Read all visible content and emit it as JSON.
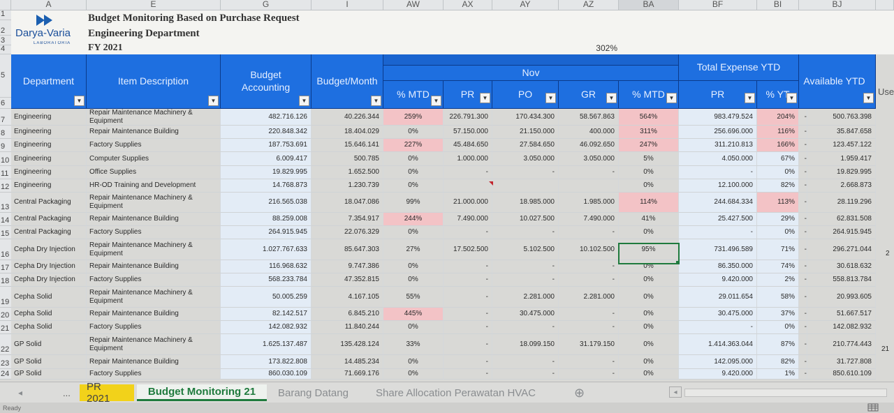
{
  "columns": [
    "A",
    "E",
    "G",
    "I",
    "AW",
    "AX",
    "AY",
    "AZ",
    "BA",
    "BF",
    "BI",
    "BJ"
  ],
  "title_block": {
    "logo_name": "Darya-Varia",
    "logo_sub": "LABORATORIA",
    "title1": "Budget Monitoring Based on Purchase Request",
    "title2": "Engineering Department",
    "title3": "FY 2021",
    "percent": "302%"
  },
  "header": {
    "department": "Department",
    "item_description": "Item Description",
    "budget_accounting": "Budget Accounting",
    "budget_month": "Budget/Month",
    "nov": "Nov",
    "mtd1": "% MTD",
    "pr": "PR",
    "po": "PO",
    "gr": "GR",
    "mtd2": "% MTD",
    "total_expense": "Total Expense YTD",
    "pr_ytd": "PR",
    "pct_ytd": "% YT",
    "available": "Available YTD",
    "use": "Use"
  },
  "row_numbers": [
    "1",
    "2",
    "3",
    "4",
    "5",
    "6"
  ],
  "rows": [
    {
      "num": "7",
      "dept": "Engineering",
      "item": "Repair Maintenance Machinery & Equipment",
      "budget": "482.716.126",
      "month": "40.226.344",
      "mtd": "259%",
      "pr": "226.791.300",
      "po": "170.434.300",
      "gr": "58.567.863",
      "mtd2": "564%",
      "prytd": "983.479.524",
      "pytd": "204%",
      "dash": "-",
      "avail": "500.763.398"
    },
    {
      "num": "8",
      "dept": "Engineering",
      "item": "Repair Maintenance Building",
      "budget": "220.848.342",
      "month": "18.404.029",
      "mtd": "0%",
      "pr": "57.150.000",
      "po": "21.150.000",
      "gr": "400.000",
      "mtd2": "311%",
      "prytd": "256.696.000",
      "pytd": "116%",
      "dash": "-",
      "avail": "35.847.658"
    },
    {
      "num": "9",
      "dept": "Engineering",
      "item": "Factory Supplies",
      "budget": "187.753.691",
      "month": "15.646.141",
      "mtd": "227%",
      "pr": "45.484.650",
      "po": "27.584.650",
      "gr": "46.092.650",
      "mtd2": "247%",
      "prytd": "311.210.813",
      "pytd": "166%",
      "dash": "-",
      "avail": "123.457.122"
    },
    {
      "num": "10",
      "dept": "Engineering",
      "item": "Computer Supplies",
      "budget": "6.009.417",
      "month": "500.785",
      "mtd": "0%",
      "pr": "1.000.000",
      "po": "3.050.000",
      "gr": "3.050.000",
      "mtd2": "5%",
      "prytd": "4.050.000",
      "pytd": "67%",
      "dash": "-",
      "avail": "1.959.417"
    },
    {
      "num": "11",
      "dept": "Engineering",
      "item": "Office Supplies",
      "budget": "19.829.995",
      "month": "1.652.500",
      "mtd": "0%",
      "pr": "-",
      "po": "-",
      "gr": "-",
      "mtd2": "0%",
      "prytd": "-",
      "pytd": "0%",
      "dash": "-",
      "avail": "19.829.995"
    },
    {
      "num": "12",
      "dept": "Engineering",
      "item": "HR-OD Training and Development",
      "budget": "14.768.873",
      "month": "1.230.739",
      "mtd": "0%",
      "pr": "",
      "po": "",
      "gr": "",
      "mtd2": "0%",
      "prytd": "12.100.000",
      "pytd": "82%",
      "dash": "-",
      "avail": "2.668.873"
    },
    {
      "num": "13",
      "dept": "Central Packaging",
      "item": "Repair Maintenance Machinery & Equipment",
      "budget": "216.565.038",
      "month": "18.047.086",
      "mtd": "99%",
      "pr": "21.000.000",
      "po": "18.985.000",
      "gr": "1.985.000",
      "mtd2": "114%",
      "prytd": "244.684.334",
      "pytd": "113%",
      "dash": "-",
      "avail": "28.119.296"
    },
    {
      "num": "14",
      "dept": "Central Packaging",
      "item": "Repair Maintenance Building",
      "budget": "88.259.008",
      "month": "7.354.917",
      "mtd": "244%",
      "pr": "7.490.000",
      "po": "10.027.500",
      "gr": "7.490.000",
      "mtd2": "41%",
      "prytd": "25.427.500",
      "pytd": "29%",
      "dash": "-",
      "avail": "62.831.508"
    },
    {
      "num": "15",
      "dept": "Central Packaging",
      "item": "Factory Supplies",
      "budget": "264.915.945",
      "month": "22.076.329",
      "mtd": "0%",
      "pr": "-",
      "po": "-",
      "gr": "-",
      "mtd2": "0%",
      "prytd": "-",
      "pytd": "0%",
      "dash": "-",
      "avail": "264.915.945"
    },
    {
      "num": "16",
      "dept": "Cepha Dry Injection",
      "item": "Repair Maintenance Machinery & Equipment",
      "budget": "1.027.767.633",
      "month": "85.647.303",
      "mtd": "27%",
      "pr": "17.502.500",
      "po": "5.102.500",
      "gr": "10.102.500",
      "mtd2": "95%",
      "prytd": "731.496.589",
      "pytd": "71%",
      "dash": "-",
      "avail": "296.271.044"
    },
    {
      "num": "17",
      "dept": "Cepha Dry Injection",
      "item": "Repair Maintenance Building",
      "budget": "116.968.632",
      "month": "9.747.386",
      "mtd": "0%",
      "pr": "-",
      "po": "-",
      "gr": "-",
      "mtd2": "0%",
      "prytd": "86.350.000",
      "pytd": "74%",
      "dash": "-",
      "avail": "30.618.632"
    },
    {
      "num": "18",
      "dept": "Cepha Dry Injection",
      "item": "Factory Supplies",
      "budget": "568.233.784",
      "month": "47.352.815",
      "mtd": "0%",
      "pr": "-",
      "po": "-",
      "gr": "-",
      "mtd2": "0%",
      "prytd": "9.420.000",
      "pytd": "2%",
      "dash": "-",
      "avail": "558.813.784"
    },
    {
      "num": "19",
      "dept": "Cepha Solid",
      "item": "Repair Maintenance Machinery & Equipment",
      "budget": "50.005.259",
      "month": "4.167.105",
      "mtd": "55%",
      "pr": "-",
      "po": "2.281.000",
      "gr": "2.281.000",
      "mtd2": "0%",
      "prytd": "29.011.654",
      "pytd": "58%",
      "dash": "-",
      "avail": "20.993.605"
    },
    {
      "num": "20",
      "dept": "Cepha Solid",
      "item": "Repair Maintenance Building",
      "budget": "82.142.517",
      "month": "6.845.210",
      "mtd": "445%",
      "pr": "-",
      "po": "30.475.000",
      "gr": "-",
      "mtd2": "0%",
      "prytd": "30.475.000",
      "pytd": "37%",
      "dash": "-",
      "avail": "51.667.517"
    },
    {
      "num": "21",
      "dept": "Cepha Solid",
      "item": "Factory Supplies",
      "budget": "142.082.932",
      "month": "11.840.244",
      "mtd": "0%",
      "pr": "-",
      "po": "-",
      "gr": "-",
      "mtd2": "0%",
      "prytd": "-",
      "pytd": "0%",
      "dash": "-",
      "avail": "142.082.932"
    },
    {
      "num": "22",
      "dept": "GP Solid",
      "item": "Repair Maintenance Machinery & Equipment",
      "budget": "1.625.137.487",
      "month": "135.428.124",
      "mtd": "33%",
      "pr": "-",
      "po": "18.099.150",
      "gr": "31.179.150",
      "mtd2": "0%",
      "prytd": "1.414.363.044",
      "pytd": "87%",
      "dash": "-",
      "avail": "210.774.443"
    },
    {
      "num": "23",
      "dept": "GP Solid",
      "item": "Repair Maintenance Building",
      "budget": "173.822.808",
      "month": "14.485.234",
      "mtd": "0%",
      "pr": "-",
      "po": "-",
      "gr": "-",
      "mtd2": "0%",
      "prytd": "142.095.000",
      "pytd": "82%",
      "dash": "-",
      "avail": "31.727.808"
    },
    {
      "num": "24",
      "dept": "GP Solid",
      "item": "Factory Supplies",
      "budget": "860.030.109",
      "month": "71.669.176",
      "mtd": "0%",
      "pr": "-",
      "po": "-",
      "gr": "-",
      "mtd2": "0%",
      "prytd": "9.420.000",
      "pytd": "1%",
      "dash": "-",
      "avail": "850.610.109"
    }
  ],
  "overflow": {
    "r16": "2",
    "r22": "21"
  },
  "tabs": {
    "prev": "◂",
    "ellipsis": "...",
    "t1": "PR 2021",
    "t2": "Budget Monitoring 21",
    "t3": "Barang Datang",
    "t4": "Share Allocation Perawatan HVAC",
    "add": "⊕",
    "scroll": "◂"
  },
  "status": {
    "ready": "Ready"
  },
  "colors": {
    "header_blue": "#1e6fe0",
    "highlight_pink": "#f3c3c6",
    "active_tab": "#1f7a3d",
    "pr_tab": "#f2d21a"
  }
}
